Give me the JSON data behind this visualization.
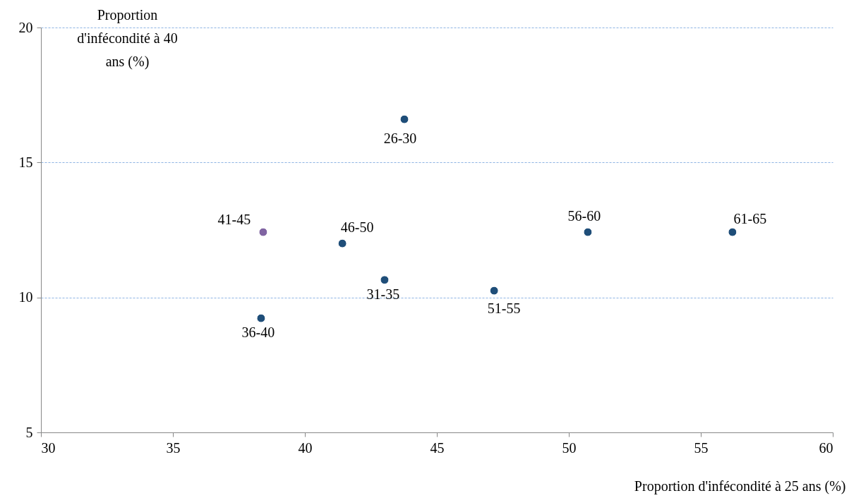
{
  "chart_data": {
    "type": "scatter",
    "xlabel": "Proportion d'infécondité à 25 ans (%)",
    "ylabel": "Proportion d'infécondité à 40 ans (%)",
    "x": [
      43.77,
      43.02,
      38.34,
      38.42,
      41.42,
      47.17,
      50.72,
      56.2
    ],
    "values": [
      16.6,
      10.65,
      9.23,
      12.42,
      12.0,
      10.25,
      12.42,
      12.42
    ],
    "value_labels": [
      "26-30",
      "31-35",
      "36-40",
      "41-45",
      "46-50",
      "51-55",
      "56-60",
      "61-65"
    ],
    "colors": [
      "#1f4e79",
      "#1f4e79",
      "#1f4e79",
      "#8064a2",
      "#1f4e79",
      "#1f4e79",
      "#1f4e79",
      "#1f4e79"
    ],
    "xlim": [
      30,
      60
    ],
    "xticks": [
      30,
      35,
      40,
      45,
      50,
      55,
      60
    ],
    "ylim": [
      5,
      20
    ],
    "yticks": [
      5,
      10,
      15,
      20
    ],
    "grid": "y",
    "marker": "circle"
  }
}
